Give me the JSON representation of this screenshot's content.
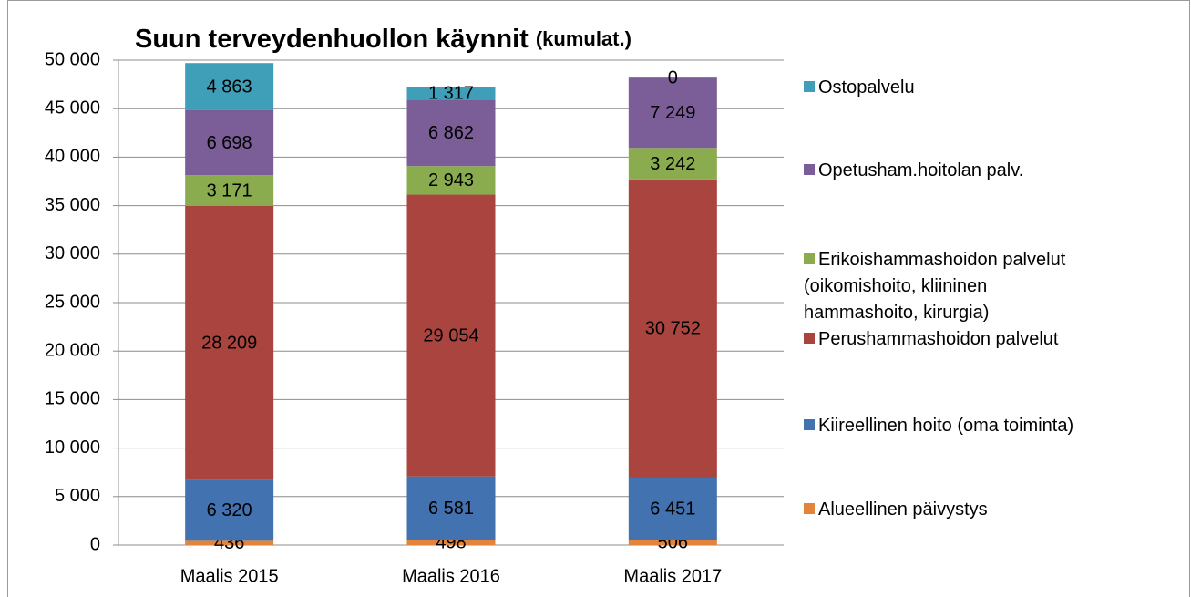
{
  "chart_data": {
    "type": "stacked_bar",
    "title": "Suun terveydenhuollon käynnit",
    "subtitle": "(kumulat.)",
    "categories": [
      "Maalis 2015",
      "Maalis 2016",
      "Maalis 2017"
    ],
    "series": [
      {
        "name": "Alueellinen päivystys",
        "color": "#e3843a",
        "values": [
          436,
          498,
          506
        ],
        "value_labels": [
          "436",
          "498",
          "506"
        ]
      },
      {
        "name": "Kiireellinen hoito (oma toiminta)",
        "color": "#4272b0",
        "values": [
          6320,
          6581,
          6451
        ],
        "value_labels": [
          "6 320",
          "6 581",
          "6 451"
        ]
      },
      {
        "name": "Perushammashoidon palvelut",
        "color": "#a9443f",
        "values": [
          28209,
          29054,
          30752
        ],
        "value_labels": [
          "28 209",
          "29 054",
          "30 752"
        ]
      },
      {
        "name": "Erikoishammashoidon palvelut (oikomishoito, kliininen hammashoito, kirurgia)",
        "color": "#8aac4e",
        "values": [
          3171,
          2943,
          3242
        ],
        "value_labels": [
          "3 171",
          "2 943",
          "3 242"
        ]
      },
      {
        "name": "Opetusham.hoitolan palv.",
        "color": "#7b5d98",
        "values": [
          6698,
          6862,
          7249
        ],
        "value_labels": [
          "6 698",
          "6 862",
          "7 249"
        ]
      },
      {
        "name": "Ostopalvelu",
        "color": "#3f9fb8",
        "values": [
          4863,
          1317,
          0
        ],
        "value_labels": [
          "4 863",
          "1 317",
          "0"
        ]
      }
    ],
    "ylim": [
      0,
      50000
    ],
    "yticks": [
      {
        "value": 0,
        "label": "0"
      },
      {
        "value": 5000,
        "label": "5 000"
      },
      {
        "value": 10000,
        "label": "10 000"
      },
      {
        "value": 15000,
        "label": "15 000"
      },
      {
        "value": 20000,
        "label": "20 000"
      },
      {
        "value": 25000,
        "label": "25 000"
      },
      {
        "value": 30000,
        "label": "30 000"
      },
      {
        "value": 35000,
        "label": "35 000"
      },
      {
        "value": 40000,
        "label": "40 000"
      },
      {
        "value": 45000,
        "label": "45 000"
      },
      {
        "value": 50000,
        "label": "50 000"
      }
    ],
    "grid": true,
    "legend": "right"
  }
}
